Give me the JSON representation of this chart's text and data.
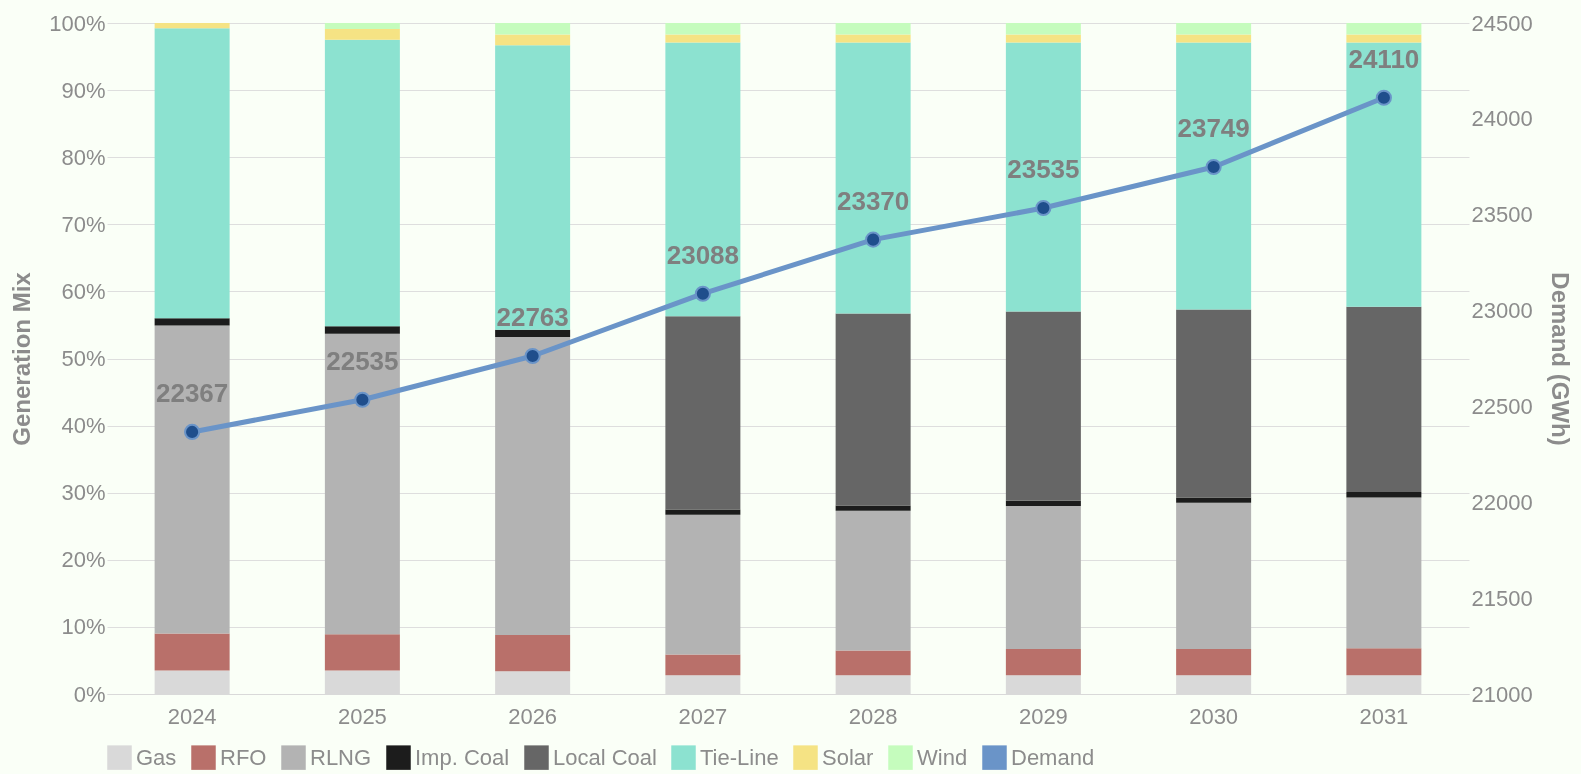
{
  "chart_data": {
    "type": "bar",
    "stacked": true,
    "ylabel": "Generation Mix",
    "y2label": "Demand (GWh)",
    "categories": [
      "2024",
      "2025",
      "2026",
      "2027",
      "2028",
      "2029",
      "2030",
      "2031"
    ],
    "series": [
      {
        "name": "Gas",
        "color": "#d9d9d9",
        "values": [
          3.5,
          3.5,
          3.4,
          2.8,
          2.8,
          2.8,
          2.8,
          2.8
        ]
      },
      {
        "name": "RFO",
        "color": "#b9706a",
        "values": [
          5.5,
          5.4,
          5.4,
          3.1,
          3.7,
          3.9,
          3.9,
          4.0
        ]
      },
      {
        "name": "RLNG",
        "color": "#b3b3b3",
        "values": [
          45.9,
          44.8,
          44.4,
          20.8,
          20.8,
          21.3,
          21.8,
          22.5
        ]
      },
      {
        "name": "Imp. Coal",
        "color": "#1c1c1c",
        "values": [
          1.1,
          1.1,
          1.1,
          0.8,
          0.8,
          0.8,
          0.8,
          0.8
        ]
      },
      {
        "name": "Local Coal",
        "color": "#666666",
        "values": [
          0,
          0,
          0,
          28.8,
          28.6,
          28.2,
          28.0,
          27.6
        ]
      },
      {
        "name": "Tie-Line",
        "color": "#8ce2d0",
        "values": [
          43.2,
          42.7,
          42.4,
          40.8,
          40.4,
          40.1,
          39.8,
          39.4
        ]
      },
      {
        "name": "Solar",
        "color": "#f5e384",
        "values": [
          0.8,
          1.6,
          1.6,
          1.2,
          1.2,
          1.2,
          1.2,
          1.2
        ]
      },
      {
        "name": "Wind",
        "color": "#c5fcbd",
        "values": [
          0,
          0.9,
          1.7,
          1.7,
          1.7,
          1.7,
          1.7,
          1.7
        ]
      },
      {
        "name": "Demand",
        "color": "#6a94c8",
        "type": "line",
        "axis": "y2",
        "marker": "circle",
        "data_labels": true,
        "values": [
          22367,
          22535,
          22763,
          23088,
          23370,
          23535,
          23749,
          24110
        ]
      }
    ],
    "ylim": [
      0,
      100
    ],
    "yticks": [
      {
        "value": 0,
        "label": "0%"
      },
      {
        "value": 10,
        "label": "10%"
      },
      {
        "value": 20,
        "label": "20%"
      },
      {
        "value": 30,
        "label": "30%"
      },
      {
        "value": 40,
        "label": "40%"
      },
      {
        "value": 50,
        "label": "50%"
      },
      {
        "value": 60,
        "label": "60%"
      },
      {
        "value": 70,
        "label": "70%"
      },
      {
        "value": 80,
        "label": "80%"
      },
      {
        "value": 90,
        "label": "90%"
      },
      {
        "value": 100,
        "label": "100%"
      }
    ],
    "y2lim": [
      21000,
      24500
    ],
    "y2ticks": [
      21000,
      21500,
      22000,
      22500,
      23000,
      23500,
      24000,
      24500
    ],
    "grid": "y",
    "legend": "bottom"
  }
}
